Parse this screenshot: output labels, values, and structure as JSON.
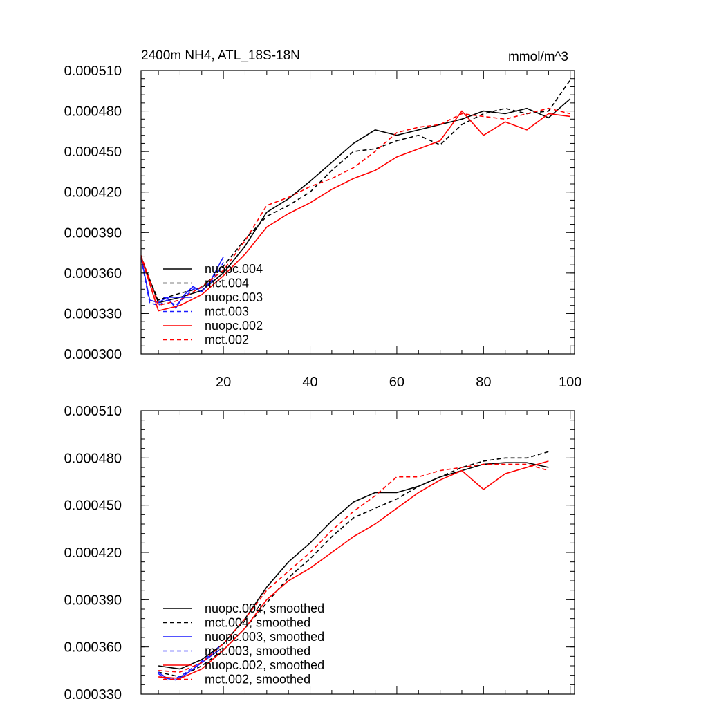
{
  "chart_data": [
    {
      "type": "line",
      "title": "2400m NH4, ATL_18S-18N",
      "units": "mmol/m^3",
      "xlim": [
        1,
        101
      ],
      "ylim": [
        0.0003,
        0.00051
      ],
      "xticks": [
        20,
        40,
        60,
        80,
        100
      ],
      "xtick_labels": [
        "20",
        "40",
        "60",
        "80",
        "100"
      ],
      "yticks": [
        0.0003,
        0.00033,
        0.00036,
        0.00039,
        0.00042,
        0.00045,
        0.00048,
        0.00051
      ],
      "ytick_labels": [
        "0.000300",
        "0.000330",
        "0.000360",
        "0.000390",
        "0.000420",
        "0.000450",
        "0.000480",
        "0.000510"
      ],
      "legend_position": "lower-left",
      "series": [
        {
          "name": "nuopc.004",
          "color": "#000000",
          "dash": "solid",
          "x": [
            1,
            5,
            10,
            15,
            20,
            25,
            30,
            35,
            40,
            45,
            50,
            55,
            60,
            65,
            70,
            75,
            80,
            85,
            90,
            95,
            100
          ],
          "y": [
            0.000372,
            0.000338,
            0.000342,
            0.000347,
            0.00036,
            0.00038,
            0.000405,
            0.000415,
            0.000428,
            0.000442,
            0.000456,
            0.000466,
            0.000462,
            0.000466,
            0.00047,
            0.000474,
            0.00048,
            0.000478,
            0.000482,
            0.000475,
            0.000489
          ]
        },
        {
          "name": "mct.004",
          "color": "#000000",
          "dash": "dashed",
          "x": [
            1,
            5,
            10,
            15,
            20,
            25,
            30,
            35,
            40,
            45,
            50,
            55,
            60,
            65,
            70,
            75,
            80,
            85,
            90,
            95,
            100
          ],
          "y": [
            0.00037,
            0.00034,
            0.000345,
            0.000349,
            0.000365,
            0.000385,
            0.000402,
            0.00041,
            0.00042,
            0.000436,
            0.00045,
            0.000452,
            0.000458,
            0.000462,
            0.000455,
            0.00047,
            0.000478,
            0.000482,
            0.000478,
            0.00048,
            0.000503
          ]
        },
        {
          "name": "nuopc.003",
          "color": "#1a1aff",
          "dash": "solid",
          "x": [
            1,
            3,
            5,
            7,
            9,
            11,
            13,
            15,
            17,
            19,
            20
          ],
          "y": [
            0.000372,
            0.00034,
            0.000338,
            0.000342,
            0.000334,
            0.000344,
            0.00035,
            0.000346,
            0.000354,
            0.000366,
            0.000372
          ]
        },
        {
          "name": "mct.003",
          "color": "#1a1aff",
          "dash": "dashed",
          "x": [
            1,
            3,
            5,
            7,
            9,
            11,
            13,
            15,
            17,
            19,
            20
          ],
          "y": [
            0.000371,
            0.000338,
            0.000336,
            0.00034,
            0.000336,
            0.000342,
            0.000348,
            0.000349,
            0.000352,
            0.000362,
            0.000368
          ]
        },
        {
          "name": "nuopc.002",
          "color": "#ff0000",
          "dash": "solid",
          "x": [
            1,
            5,
            10,
            15,
            20,
            25,
            30,
            35,
            40,
            45,
            50,
            55,
            60,
            65,
            70,
            75,
            80,
            85,
            90,
            95,
            100
          ],
          "y": [
            0.000372,
            0.000332,
            0.000336,
            0.000344,
            0.000358,
            0.000374,
            0.000394,
            0.000404,
            0.000412,
            0.000422,
            0.00043,
            0.000436,
            0.000446,
            0.000452,
            0.000458,
            0.00048,
            0.000462,
            0.000472,
            0.000466,
            0.000478,
            0.000476
          ]
        },
        {
          "name": "mct.002",
          "color": "#ff0000",
          "dash": "dashed",
          "x": [
            1,
            5,
            10,
            15,
            20,
            25,
            30,
            35,
            40,
            45,
            50,
            55,
            60,
            65,
            70,
            75,
            80,
            85,
            90,
            95,
            100
          ],
          "y": [
            0.000373,
            0.000336,
            0.00034,
            0.00035,
            0.000362,
            0.000384,
            0.00041,
            0.000416,
            0.000424,
            0.00043,
            0.000438,
            0.00045,
            0.000464,
            0.000468,
            0.00047,
            0.000478,
            0.000476,
            0.000474,
            0.000478,
            0.000482,
            0.000478
          ]
        }
      ]
    },
    {
      "type": "line",
      "title": "",
      "xlim": [
        1,
        101
      ],
      "ylim": [
        0.00033,
        0.00051
      ],
      "xticks": [
        20,
        40,
        60,
        80,
        100
      ],
      "xtick_labels": [],
      "yticks": [
        0.00033,
        0.00036,
        0.00039,
        0.00042,
        0.00045,
        0.00048,
        0.00051
      ],
      "ytick_labels": [
        "0.000330",
        "0.000360",
        "0.000390",
        "0.000420",
        "0.000450",
        "0.000480",
        "0.000510"
      ],
      "legend_position": "lower-left",
      "series": [
        {
          "name": "nuopc.004, smoothed",
          "color": "#000000",
          "dash": "solid",
          "x": [
            5,
            10,
            15,
            20,
            25,
            30,
            35,
            40,
            45,
            50,
            55,
            60,
            65,
            70,
            75,
            80,
            85,
            90,
            95
          ],
          "y": [
            0.000348,
            0.000346,
            0.000352,
            0.000362,
            0.000378,
            0.000398,
            0.000414,
            0.000426,
            0.00044,
            0.000452,
            0.000458,
            0.000458,
            0.000462,
            0.000468,
            0.000472,
            0.000476,
            0.000477,
            0.000477,
            0.000474
          ]
        },
        {
          "name": "mct.004, smoothed",
          "color": "#000000",
          "dash": "dashed",
          "x": [
            5,
            10,
            15,
            20,
            25,
            30,
            35,
            40,
            45,
            50,
            55,
            60,
            65,
            70,
            75,
            80,
            85,
            90,
            95
          ],
          "y": [
            0.000344,
            0.000341,
            0.000348,
            0.000358,
            0.000372,
            0.000388,
            0.000404,
            0.000416,
            0.00043,
            0.000442,
            0.000448,
            0.000454,
            0.000462,
            0.000468,
            0.000474,
            0.000478,
            0.00048,
            0.00048,
            0.000484
          ]
        },
        {
          "name": "nuopc.003, smoothed",
          "color": "#1a1aff",
          "dash": "solid",
          "x": [
            5,
            7,
            9,
            11,
            13,
            15,
            17,
            19
          ],
          "y": [
            0.000344,
            0.00034,
            0.000339,
            0.000342,
            0.000346,
            0.00035,
            0.000354,
            0.000358
          ]
        },
        {
          "name": "mct.003, smoothed",
          "color": "#1a1aff",
          "dash": "dashed",
          "x": [
            5,
            7,
            9,
            11,
            13,
            15,
            17,
            19
          ],
          "y": [
            0.000343,
            0.000339,
            0.00034,
            0.000343,
            0.000347,
            0.000351,
            0.000355,
            0.00036
          ]
        },
        {
          "name": "nuopc.002, smoothed",
          "color": "#ff0000",
          "dash": "solid",
          "x": [
            5,
            10,
            15,
            20,
            25,
            30,
            35,
            40,
            45,
            50,
            55,
            60,
            65,
            70,
            75,
            80,
            85,
            90,
            95
          ],
          "y": [
            0.000341,
            0.00034,
            0.000346,
            0.000358,
            0.000372,
            0.00039,
            0.000402,
            0.00041,
            0.00042,
            0.00043,
            0.000438,
            0.000448,
            0.000458,
            0.000466,
            0.000472,
            0.00046,
            0.00047,
            0.000474,
            0.000478
          ]
        },
        {
          "name": "mct.002, smoothed",
          "color": "#ff0000",
          "dash": "dashed",
          "x": [
            5,
            10,
            15,
            20,
            25,
            30,
            35,
            40,
            45,
            50,
            55,
            60,
            65,
            70,
            75,
            80,
            85,
            90,
            95
          ],
          "y": [
            0.000345,
            0.000344,
            0.00035,
            0.000362,
            0.000378,
            0.000396,
            0.000408,
            0.00042,
            0.000434,
            0.000446,
            0.000456,
            0.000468,
            0.000468,
            0.000472,
            0.000474,
            0.000476,
            0.000476,
            0.000476,
            0.000472
          ]
        }
      ]
    }
  ]
}
